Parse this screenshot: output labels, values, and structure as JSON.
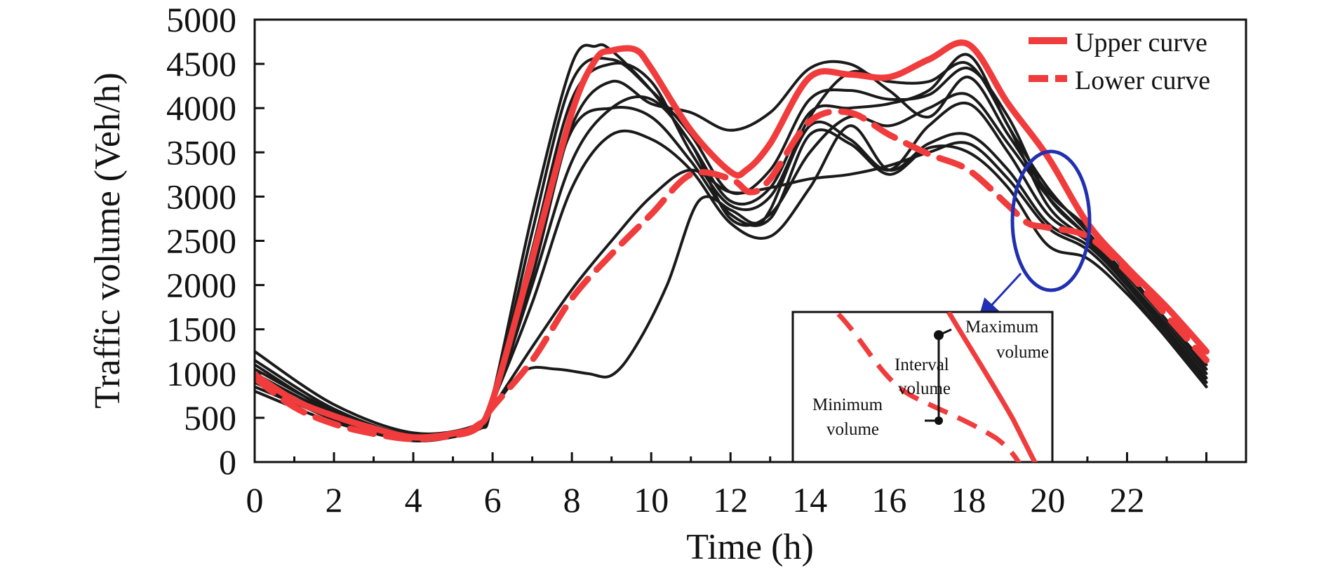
{
  "chart_data": {
    "type": "line",
    "xlabel": "Time (h)",
    "ylabel": "Traffic volume (Veh/h)",
    "xlim": [
      0,
      25
    ],
    "ylim": [
      0,
      5000
    ],
    "x_ticks": [
      0,
      2,
      4,
      6,
      8,
      10,
      12,
      14,
      16,
      18,
      20,
      22
    ],
    "y_ticks": [
      0,
      500,
      1000,
      1500,
      2000,
      2500,
      3000,
      3500,
      4000,
      4500,
      5000
    ],
    "grid": false,
    "legend_position": "top-right",
    "legend": [
      {
        "label": "Upper curve",
        "style": "solid",
        "color": "#f03c3c"
      },
      {
        "label": "Lower curve",
        "style": "dashed",
        "color": "#f03c3c"
      }
    ],
    "series": [
      {
        "name": "Upper curve",
        "style": "solid",
        "color": "#f03c3c",
        "x": [
          0,
          1,
          2,
          3,
          4,
          5,
          5.6,
          6,
          7,
          8,
          8.6,
          9,
          9.6,
          10,
          11,
          12,
          12.4,
          13,
          14,
          15,
          16,
          17,
          18,
          19,
          20,
          21,
          22,
          23,
          24
        ],
        "y": [
          990,
          700,
          520,
          380,
          280,
          320,
          410,
          700,
          2300,
          3950,
          4550,
          4650,
          4660,
          4450,
          3750,
          3280,
          3300,
          3600,
          4350,
          4380,
          4350,
          4550,
          4720,
          4050,
          3450,
          2700,
          2200,
          1750,
          1250
        ]
      },
      {
        "name": "Lower curve",
        "style": "dashed",
        "color": "#f03c3c",
        "x": [
          0,
          1,
          2,
          3,
          4,
          5,
          5.6,
          6,
          7,
          8,
          9,
          10,
          11,
          12,
          12.5,
          13,
          14,
          15,
          16,
          17,
          18,
          19,
          19.5,
          20,
          21,
          22,
          23,
          24
        ],
        "y": [
          950,
          620,
          430,
          320,
          260,
          300,
          380,
          620,
          1150,
          1850,
          2350,
          2800,
          3250,
          3200,
          3050,
          3200,
          3850,
          3950,
          3700,
          3480,
          3300,
          2900,
          2700,
          2650,
          2550,
          2150,
          1650,
          1150
        ]
      },
      {
        "style": "solid",
        "color": "#1a1a1a",
        "x": [
          0,
          2,
          4,
          5.6,
          6,
          7,
          8,
          8.6,
          9,
          10,
          11,
          12,
          13,
          14,
          15,
          16,
          17,
          18,
          19,
          20,
          21,
          22,
          23,
          24
        ],
        "y": [
          1100,
          560,
          280,
          400,
          750,
          2800,
          4500,
          4700,
          4650,
          4200,
          3600,
          2950,
          3100,
          3950,
          4000,
          4050,
          4200,
          4600,
          3800,
          3100,
          2600,
          2100,
          1600,
          1050
        ]
      },
      {
        "style": "solid",
        "color": "#1a1a1a",
        "x": [
          0,
          2,
          4,
          5.6,
          6,
          7,
          8,
          9,
          10,
          11,
          12,
          13,
          14,
          15,
          16,
          17,
          18,
          19,
          20,
          21,
          22,
          23,
          24
        ],
        "y": [
          900,
          480,
          240,
          380,
          700,
          2400,
          4100,
          4500,
          4300,
          3500,
          2900,
          3000,
          3900,
          4400,
          4300,
          4300,
          4500,
          3800,
          2900,
          2500,
          2000,
          1500,
          950
        ]
      },
      {
        "style": "solid",
        "color": "#1a1a1a",
        "x": [
          0,
          2,
          4,
          5.6,
          6,
          7,
          8,
          9,
          10,
          11,
          12,
          13,
          14,
          15,
          16,
          17,
          18,
          19,
          20,
          21,
          22,
          23,
          24
        ],
        "y": [
          1250,
          650,
          330,
          420,
          700,
          2100,
          3800,
          4300,
          4050,
          3950,
          3750,
          3950,
          4450,
          4500,
          4200,
          3900,
          4350,
          3700,
          3050,
          2650,
          2150,
          1600,
          1100
        ]
      },
      {
        "style": "solid",
        "color": "#1a1a1a",
        "x": [
          0,
          2,
          4,
          5.6,
          6,
          7,
          8,
          9,
          10,
          11,
          12,
          13,
          14,
          15,
          16,
          17,
          18,
          19,
          20,
          21,
          22,
          23,
          24
        ],
        "y": [
          800,
          450,
          250,
          360,
          650,
          2000,
          3400,
          4000,
          4100,
          3600,
          2750,
          2800,
          3500,
          3900,
          3800,
          4000,
          4150,
          3600,
          3000,
          2550,
          2050,
          1500,
          900
        ]
      },
      {
        "style": "solid",
        "color": "#1a1a1a",
        "x": [
          0,
          2,
          4,
          5.6,
          6,
          7,
          8,
          9,
          10,
          11,
          12,
          13,
          14,
          15,
          16,
          17,
          18,
          19,
          20,
          21,
          22,
          23,
          24
        ],
        "y": [
          1000,
          550,
          300,
          390,
          680,
          1800,
          3100,
          3700,
          3650,
          3300,
          2700,
          2550,
          3100,
          3800,
          3300,
          3600,
          3700,
          3300,
          2700,
          2450,
          2000,
          1450,
          900
        ]
      },
      {
        "style": "solid",
        "color": "#1a1a1a",
        "x": [
          0,
          2,
          4,
          5.6,
          6,
          7,
          8,
          9,
          10,
          11,
          12,
          13,
          14,
          15,
          16,
          17,
          18,
          19,
          20,
          21,
          22,
          23,
          24
        ],
        "y": [
          1150,
          600,
          300,
          390,
          620,
          1300,
          1950,
          2500,
          3000,
          3300,
          3050,
          3100,
          3200,
          3250,
          3350,
          3500,
          3600,
          3200,
          2650,
          2400,
          1950,
          1400,
          850
        ]
      },
      {
        "style": "solid",
        "color": "#1a1a1a",
        "x": [
          0,
          2,
          4,
          5.6,
          6,
          6.8,
          7.6,
          8.4,
          9,
          9.6,
          10.4,
          11.2,
          12,
          12.6,
          13,
          14,
          15,
          16,
          17,
          18,
          19,
          20,
          21,
          22,
          23,
          24
        ],
        "y": [
          850,
          500,
          270,
          380,
          600,
          1030,
          1050,
          1000,
          980,
          1300,
          2000,
          2950,
          2850,
          2700,
          2850,
          3800,
          3650,
          3300,
          3800,
          4050,
          3500,
          2800,
          2500,
          2050,
          1500,
          950
        ]
      },
      {
        "style": "solid",
        "color": "#1a1a1a",
        "x": [
          0,
          2,
          4,
          5.6,
          6,
          7,
          8,
          9,
          10,
          11,
          12,
          13,
          14,
          15,
          16,
          17,
          18,
          19,
          20,
          21,
          22,
          23,
          24
        ],
        "y": [
          950,
          520,
          280,
          370,
          660,
          2600,
          4300,
          4550,
          4200,
          3700,
          3050,
          3300,
          4100,
          4200,
          4100,
          4150,
          4450,
          3900,
          3000,
          2550,
          2050,
          1550,
          1000
        ]
      },
      {
        "style": "solid",
        "color": "#1a1a1a",
        "x": [
          0,
          2,
          4,
          5.6,
          6,
          7,
          8,
          9,
          10,
          11,
          12,
          13,
          14,
          15,
          16,
          17,
          18,
          19,
          20,
          21,
          22,
          23,
          24
        ],
        "y": [
          1050,
          580,
          290,
          400,
          720,
          2300,
          3750,
          4000,
          3900,
          3400,
          2800,
          2750,
          3700,
          3600,
          3250,
          3550,
          3500,
          3100,
          2450,
          2300,
          1900,
          1400,
          850
        ]
      }
    ]
  },
  "inset": {
    "max_label_line1": "Maximum",
    "max_label_line2": "volume",
    "interval_label_line1": "Interval",
    "interval_label_line2": "volume",
    "min_label_line1": "Minimum",
    "min_label_line2": "volume"
  },
  "colors": {
    "upper": "#f03c3c",
    "lower": "#f03c3c",
    "samples": "#1a1a1a",
    "highlight": "#2030b0"
  }
}
